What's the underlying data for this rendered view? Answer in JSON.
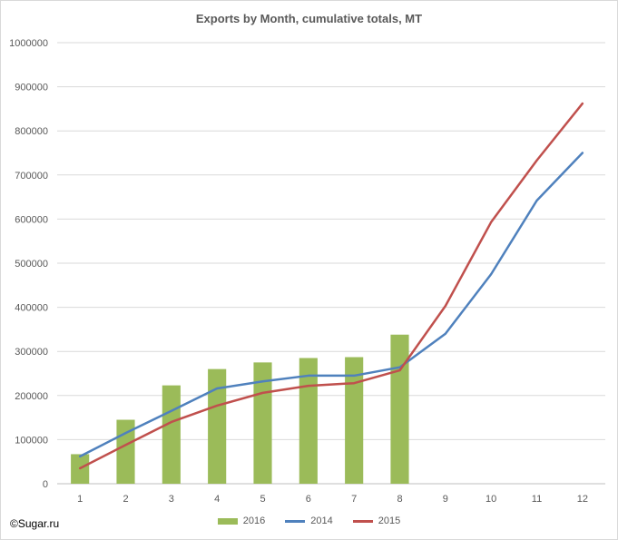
{
  "chart_data": {
    "type": "bar+line",
    "title": "Exports by Month, cumulative totals, MT",
    "xlabel": "",
    "ylabel": "",
    "categories": [
      "1",
      "2",
      "3",
      "4",
      "5",
      "6",
      "7",
      "8",
      "9",
      "10",
      "11",
      "12"
    ],
    "ylim": [
      0,
      1000000
    ],
    "yticks": [
      "0",
      "100000",
      "200000",
      "300000",
      "400000",
      "500000",
      "600000",
      "700000",
      "800000",
      "900000",
      "1000000"
    ],
    "grid": true,
    "legend_position": "bottom",
    "series": [
      {
        "name": "2016",
        "kind": "bar",
        "color": "#9bbb59",
        "values": [
          67000,
          145000,
          223000,
          260000,
          275000,
          285000,
          287000,
          338000,
          null,
          null,
          null,
          null
        ]
      },
      {
        "name": "2014",
        "kind": "line",
        "color": "#4f81bd",
        "values": [
          62000,
          115000,
          165000,
          216000,
          232000,
          245000,
          245000,
          264000,
          340000,
          475000,
          642000,
          750000
        ]
      },
      {
        "name": "2015",
        "kind": "line",
        "color": "#c0504d",
        "values": [
          35000,
          88000,
          140000,
          177000,
          206000,
          222000,
          228000,
          257000,
          403000,
          593000,
          733000,
          862000
        ]
      }
    ]
  },
  "credit": "©Sugar.ru"
}
